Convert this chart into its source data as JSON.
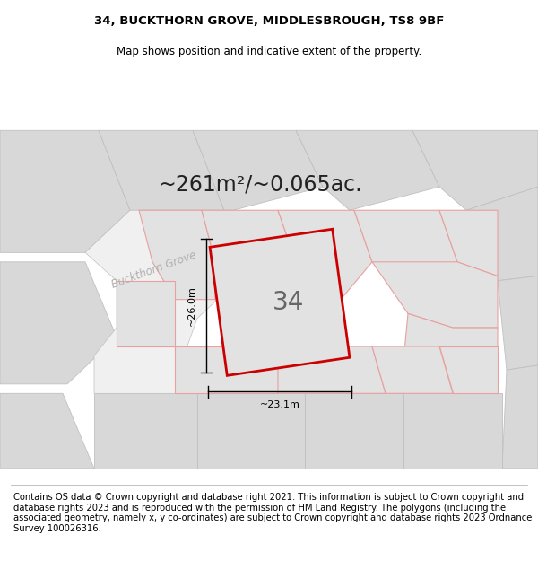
{
  "title_line1": "34, BUCKTHORN GROVE, MIDDLESBROUGH, TS8 9BF",
  "title_line2": "Map shows position and indicative extent of the property.",
  "area_text": "~261m²/~0.065ac.",
  "plot_number": "34",
  "dim_width": "~23.1m",
  "dim_height": "~26.0m",
  "street_name": "Buckthorn Grove",
  "footer_text": "Contains OS data © Crown copyright and database right 2021. This information is subject to Crown copyright and database rights 2023 and is reproduced with the permission of HM Land Registry. The polygons (including the associated geometry, namely x, y co-ordinates) are subject to Crown copyright and database rights 2023 Ordnance Survey 100026316.",
  "bg_color": "#ffffff",
  "plot_fill": "#e2e2e2",
  "plot_border": "#cc0000",
  "neighbor_fill": "#e2e2e2",
  "neighbor_line": "#e8a0a0",
  "gray_fill": "#d8d8d8",
  "gray_line": "#c0c0c0",
  "dim_color": "#000000",
  "text_color": "#000000",
  "street_color": "#b0b0b0",
  "title_fontsize": 9.5,
  "subtitle_fontsize": 8.5,
  "area_fontsize": 17,
  "plot_num_fontsize": 20,
  "street_fontsize": 8.5,
  "dim_fontsize": 8,
  "footer_fontsize": 7.2
}
